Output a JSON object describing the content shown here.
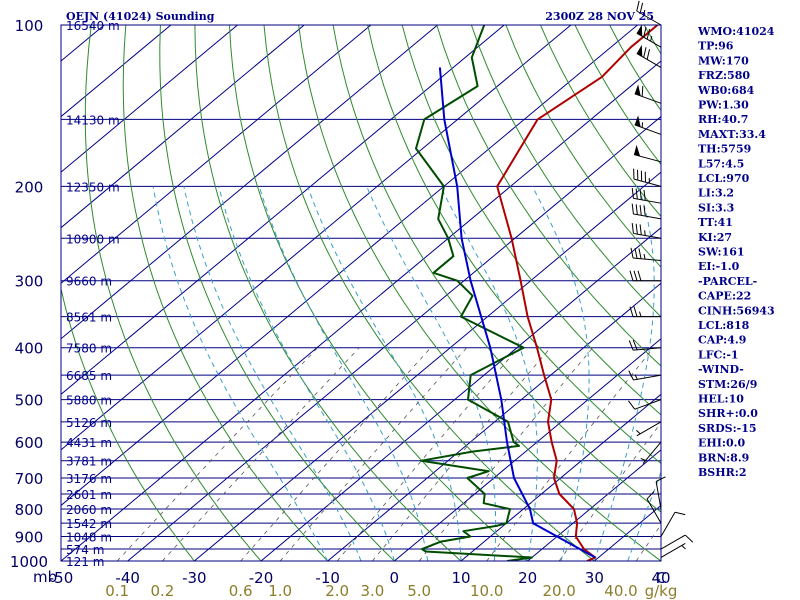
{
  "header": {
    "title": "OEJN (41024) Sounding",
    "timestamp": "2300Z 28 NOV 25"
  },
  "colors": {
    "isobar": "#000080",
    "isotherm": "#00008b",
    "dry_adiabat": "#2e8b2e",
    "moist_adiabat": "#3aa0c8",
    "mixing_ratio": "#555555",
    "temperature": "#b00000",
    "dewpoint": "#004d00",
    "parcel": "#0000cc",
    "wind_barb": "#000000"
  },
  "chart_data": {
    "type": "line",
    "title": "OEJN (41024) Sounding",
    "diagram": "skew-t log-p",
    "y_axis": {
      "label": "mb",
      "scale": "log",
      "range": [
        1000,
        100
      ],
      "tick_labels": [
        "100",
        "200",
        "300",
        "400",
        "500",
        "600",
        "700",
        "800",
        "900",
        "1000"
      ]
    },
    "x_axis": {
      "label": "C",
      "range": [
        -50,
        40
      ],
      "tick_labels": [
        "-50",
        "-40",
        "-30",
        "-20",
        "-10",
        "0",
        "10",
        "20",
        "30",
        "40",
        "C"
      ]
    },
    "mixing_ratio_labels": [
      "0.1",
      "0.2",
      "0.6",
      "1.0",
      "2.0",
      "3.0",
      "5.0",
      "10.0",
      "20.0",
      "40.0",
      "g/kg"
    ],
    "height_labels": [
      {
        "pressure": 100,
        "label": "16540 m"
      },
      {
        "pressure": 150,
        "label": "14130 m"
      },
      {
        "pressure": 200,
        "label": "12350 m"
      },
      {
        "pressure": 250,
        "label": "10900 m"
      },
      {
        "pressure": 300,
        "label": "9660 m"
      },
      {
        "pressure": 350,
        "label": "8561 m"
      },
      {
        "pressure": 400,
        "label": "7580 m"
      },
      {
        "pressure": 450,
        "label": "6685 m"
      },
      {
        "pressure": 500,
        "label": "5880 m"
      },
      {
        "pressure": 550,
        "label": "5126 m"
      },
      {
        "pressure": 600,
        "label": "4431 m"
      },
      {
        "pressure": 650,
        "label": "3781 m"
      },
      {
        "pressure": 700,
        "label": "3176 m"
      },
      {
        "pressure": 750,
        "label": "2601 m"
      },
      {
        "pressure": 800,
        "label": "2060 m"
      },
      {
        "pressure": 850,
        "label": "1542 m"
      },
      {
        "pressure": 900,
        "label": "1048 m"
      },
      {
        "pressure": 950,
        "label": "574 m"
      },
      {
        "pressure": 1000,
        "label": "121 m"
      }
    ],
    "series": [
      {
        "key": "temperature",
        "points": [
          [
            1000,
            28.9
          ],
          [
            985,
            29.5
          ],
          [
            950,
            26.3
          ],
          [
            900,
            22.8
          ],
          [
            850,
            20.6
          ],
          [
            800,
            17.6
          ],
          [
            750,
            12.7
          ],
          [
            700,
            9.0
          ],
          [
            650,
            6.3
          ],
          [
            600,
            2.2
          ],
          [
            550,
            -2.0
          ],
          [
            500,
            -5.5
          ],
          [
            450,
            -11.0
          ],
          [
            400,
            -17.0
          ],
          [
            350,
            -24.0
          ],
          [
            300,
            -31.5
          ],
          [
            250,
            -40.5
          ],
          [
            200,
            -52.0
          ],
          [
            150,
            -58.0
          ],
          [
            125,
            -56.0
          ],
          [
            110,
            -57.0
          ],
          [
            100,
            -57.0
          ]
        ]
      },
      {
        "key": "dewpoint",
        "points": [
          [
            1000,
            16.9
          ],
          [
            985,
            20.0
          ],
          [
            960,
            3.0
          ],
          [
            950,
            2.0
          ],
          [
            920,
            3.5
          ],
          [
            900,
            7.0
          ],
          [
            880,
            5.0
          ],
          [
            860,
            9.0
          ],
          [
            850,
            10.0
          ],
          [
            800,
            8.0
          ],
          [
            780,
            3.0
          ],
          [
            750,
            1.5
          ],
          [
            700,
            -4.0
          ],
          [
            680,
            -2.0
          ],
          [
            650,
            -14.0
          ],
          [
            625,
            -8.0
          ],
          [
            610,
            -2.0
          ],
          [
            600,
            -3.5
          ],
          [
            550,
            -8.0
          ],
          [
            500,
            -18.0
          ],
          [
            450,
            -22.0
          ],
          [
            400,
            -19.0
          ],
          [
            350,
            -34.0
          ],
          [
            320,
            -36.0
          ],
          [
            300,
            -41.0
          ],
          [
            290,
            -46.0
          ],
          [
            270,
            -46.0
          ],
          [
            250,
            -50.0
          ],
          [
            230,
            -55.0
          ],
          [
            200,
            -60.0
          ],
          [
            170,
            -71.0
          ],
          [
            150,
            -75.0
          ],
          [
            130,
            -73.0
          ],
          [
            115,
            -79.0
          ],
          [
            100,
            -83.0
          ]
        ]
      },
      {
        "key": "parcel",
        "points": [
          [
            985,
            29.5
          ],
          [
            850,
            14.0
          ],
          [
            800,
            11.0
          ],
          [
            700,
            3.0
          ],
          [
            600,
            -4.5
          ],
          [
            500,
            -13.0
          ],
          [
            400,
            -24.0
          ],
          [
            300,
            -39.0
          ],
          [
            250,
            -48.0
          ],
          [
            200,
            -58.0
          ],
          [
            150,
            -72.0
          ],
          [
            120,
            -82.0
          ]
        ]
      }
    ],
    "wind_barbs": [
      {
        "pressure": 100,
        "direction": 300,
        "speed": 25
      },
      {
        "pressure": 110,
        "direction": 300,
        "speed": 75
      },
      {
        "pressure": 120,
        "direction": 300,
        "speed": 70
      },
      {
        "pressure": 140,
        "direction": 290,
        "speed": 60
      },
      {
        "pressure": 160,
        "direction": 290,
        "speed": 55
      },
      {
        "pressure": 180,
        "direction": 285,
        "speed": 50
      },
      {
        "pressure": 200,
        "direction": 285,
        "speed": 45
      },
      {
        "pressure": 215,
        "direction": 280,
        "speed": 40
      },
      {
        "pressure": 230,
        "direction": 280,
        "speed": 40
      },
      {
        "pressure": 250,
        "direction": 280,
        "speed": 35
      },
      {
        "pressure": 275,
        "direction": 275,
        "speed": 35
      },
      {
        "pressure": 300,
        "direction": 270,
        "speed": 30
      },
      {
        "pressure": 350,
        "direction": 270,
        "speed": 25
      },
      {
        "pressure": 400,
        "direction": 265,
        "speed": 20
      },
      {
        "pressure": 450,
        "direction": 260,
        "speed": 15
      },
      {
        "pressure": 500,
        "direction": 250,
        "speed": 10
      },
      {
        "pressure": 550,
        "direction": 240,
        "speed": 5
      },
      {
        "pressure": 600,
        "direction": 220,
        "speed": 5
      },
      {
        "pressure": 800,
        "direction": 350,
        "speed": 10
      },
      {
        "pressure": 850,
        "direction": 330,
        "speed": 10
      },
      {
        "pressure": 900,
        "direction": 30,
        "speed": 10
      },
      {
        "pressure": 950,
        "direction": 60,
        "speed": 10
      },
      {
        "pressure": 985,
        "direction": 60,
        "speed": 5
      }
    ]
  },
  "indices": [
    "WMO:41024",
    "TP:96",
    "MW:170",
    "FRZ:580",
    "WB0:684",
    "PW:1.30",
    "RH:40.7",
    "MAXT:33.4",
    "TH:5759",
    "L57:4.5",
    "LCL:970",
    "LI:3.2",
    "SI:3.3",
    "TT:41",
    "KI:27",
    "SW:161",
    "EI:-1.0",
    "-PARCEL-",
    "CAPE:22",
    "CINH:56943",
    "LCL:818",
    "CAP:4.9",
    "LFC:-1",
    "-WIND-",
    "STM:26/9",
    "HEL:10",
    "SHR+:0.0",
    "SRDS:-15",
    "EHI:0.0",
    "BRN:8.9",
    "BSHR:2"
  ]
}
